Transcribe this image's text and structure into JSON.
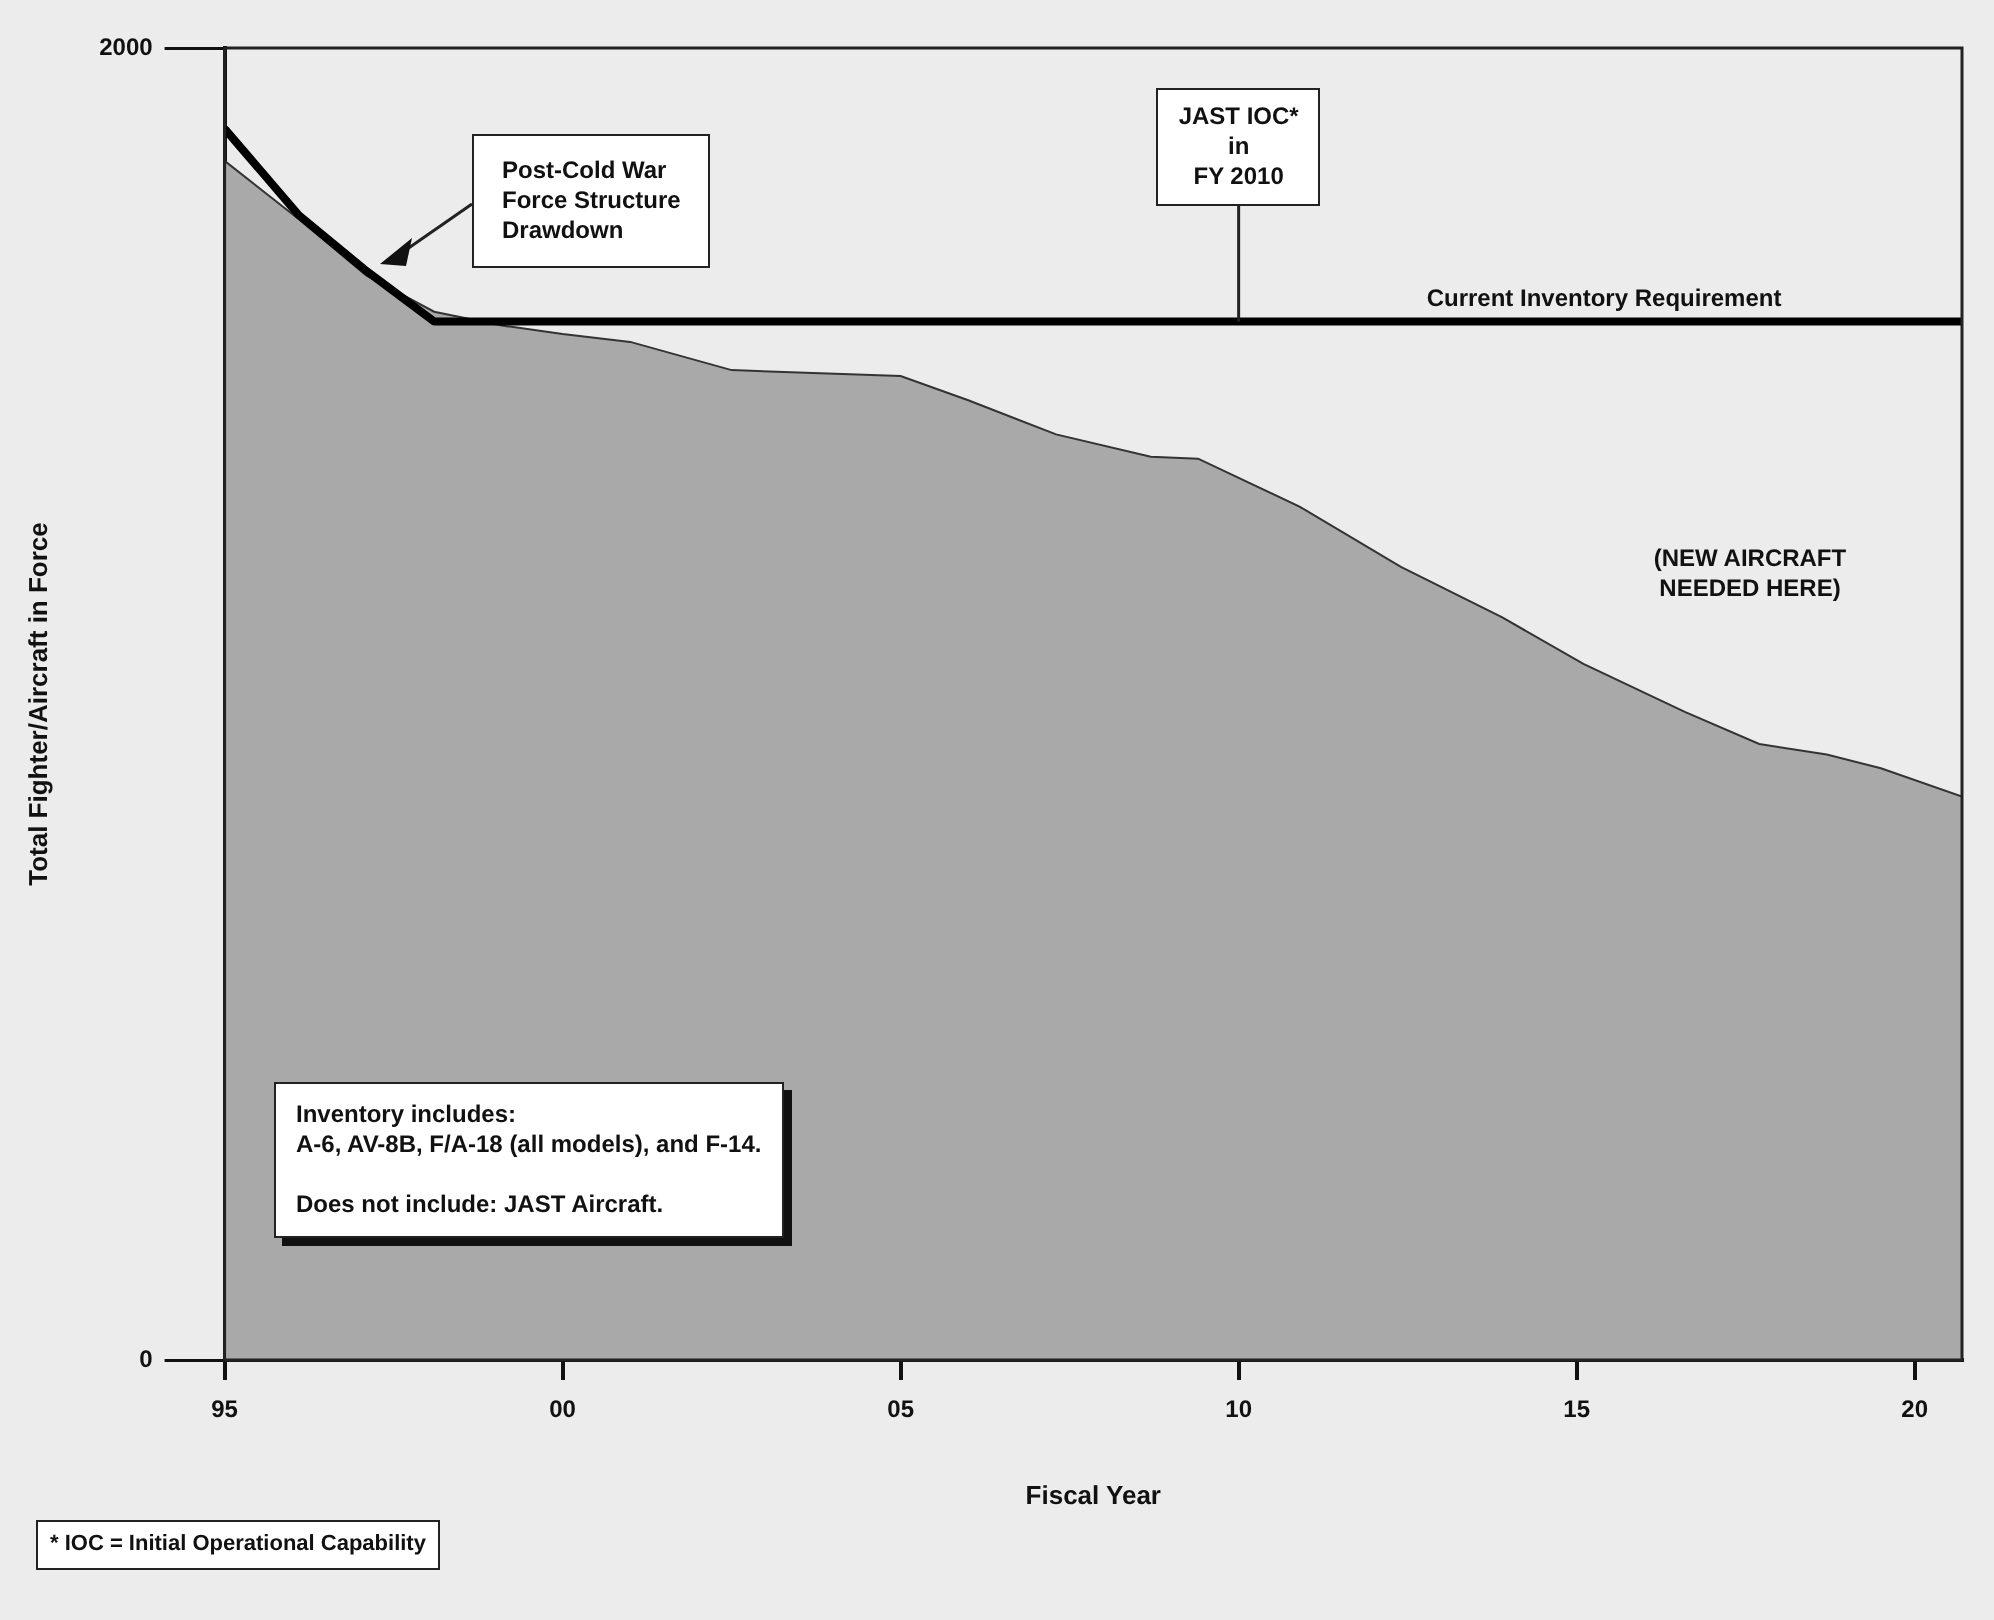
{
  "chart_data": {
    "type": "area",
    "xlabel": "Fiscal Year",
    "ylabel": "Total Fighter/Aircraft in Force",
    "xlim": [
      1995,
      2020.7
    ],
    "xticks": [
      {
        "value": 1995,
        "label": "95"
      },
      {
        "value": 2000,
        "label": "00"
      },
      {
        "value": 2005,
        "label": "05"
      },
      {
        "value": 2010,
        "label": "10"
      },
      {
        "value": 2015,
        "label": "15"
      },
      {
        "value": 2020,
        "label": "20"
      }
    ],
    "ylim": [
      0,
      2000
    ],
    "yticks": [
      0,
      2000
    ],
    "grid": false,
    "legend": false,
    "marker": "none",
    "series": [
      {
        "type": "area",
        "color": "#a9a9a9",
        "x": [
          1995,
          1996.1,
          1997.1,
          1998.1,
          1999.1,
          2000,
          2001,
          2002.5,
          2005,
          2006,
          2007.3,
          2008.7,
          2009.4,
          2010.9,
          2012.4,
          2013.9,
          2015.1,
          2016.6,
          2017.7,
          2018.7,
          2019.5,
          2020.7
        ],
        "values": [
          1828,
          1739,
          1653,
          1598,
          1577,
          1564,
          1552,
          1509,
          1500,
          1463,
          1411,
          1377,
          1374,
          1301,
          1209,
          1132,
          1061,
          988,
          939,
          923,
          902,
          859
        ]
      },
      {
        "type": "line",
        "color": "#000000",
        "x": [
          1995,
          1996.1,
          1997.1,
          1998.1,
          2020.7
        ],
        "values": [
          1877,
          1745,
          1660,
          1583,
          1583
        ]
      }
    ],
    "annotations": [
      "Post-Cold War\nForce Structure\nDrawdown",
      {
        "text": "JAST IOC*\nin\nFY 2010",
        "x": 2010,
        "y": 1583
      },
      {
        "text": "Current Inventory Requirement",
        "x": 2015.4,
        "y": 1583
      },
      "(NEW AIRCRAFT\nNEEDED HERE)",
      "Inventory includes:\nA-6, AV-8B, F/A-18 (all models), and F-14.\n\nDoes not include: JAST Aircraft.",
      "* IOC = Initial Operational Capability"
    ]
  }
}
